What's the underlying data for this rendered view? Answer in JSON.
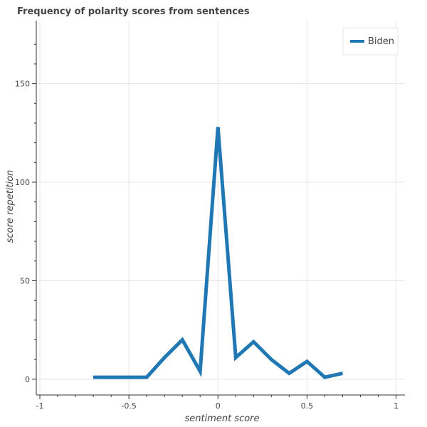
{
  "chart_data": {
    "type": "line",
    "title": "Frequency of polarity scores from sentences",
    "xlabel": "sentiment score",
    "ylabel": "score repetition",
    "xlim": [
      -1.02,
      1.05
    ],
    "ylim": [
      -8,
      182
    ],
    "x_ticks": [
      -1,
      -0.5,
      0,
      0.5,
      1
    ],
    "x_tick_labels": [
      "-1",
      "-0.5",
      "0",
      "0.5",
      "1"
    ],
    "y_ticks": [
      0,
      50,
      100,
      150
    ],
    "y_tick_labels": [
      "0",
      "50",
      "100",
      "150"
    ],
    "grid": true,
    "legend_position": "top-right",
    "series": [
      {
        "name": "Biden",
        "color": "#1f77b4",
        "x": [
          -0.7,
          -0.6,
          -0.5,
          -0.4,
          -0.3,
          -0.2,
          -0.1,
          0,
          0.1,
          0.2,
          0.3,
          0.4,
          0.5,
          0.6,
          0.7
        ],
        "y": [
          1,
          1,
          1,
          1,
          11,
          20,
          4,
          128,
          11,
          19,
          10,
          3,
          9,
          1,
          3
        ]
      }
    ]
  }
}
